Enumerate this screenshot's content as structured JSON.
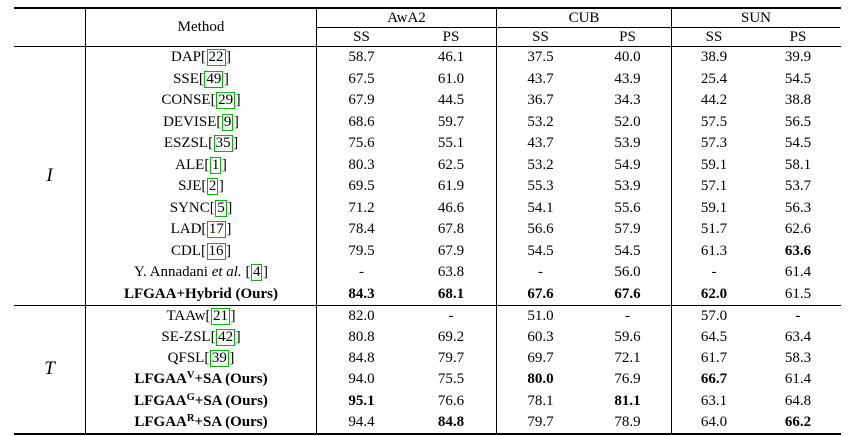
{
  "header": {
    "method_label": "Method",
    "datasets": [
      "AwA2",
      "CUB",
      "SUN"
    ],
    "subcolumns": [
      "SS",
      "PS"
    ]
  },
  "accent": {
    "citation_box_color": "#00b800"
  },
  "groups": [
    {
      "label": "I",
      "rows": [
        {
          "parts": [
            {
              "t": "DAP"
            },
            {
              "cite": "22"
            }
          ],
          "bold": false,
          "cells": [
            {
              "v": "58.7"
            },
            {
              "v": "46.1"
            },
            {
              "v": "37.5"
            },
            {
              "v": "40.0"
            },
            {
              "v": "38.9"
            },
            {
              "v": "39.9"
            }
          ]
        },
        {
          "parts": [
            {
              "t": "SSE"
            },
            {
              "cite": "49"
            }
          ],
          "bold": false,
          "cells": [
            {
              "v": "67.5"
            },
            {
              "v": "61.0"
            },
            {
              "v": "43.7"
            },
            {
              "v": "43.9"
            },
            {
              "v": "25.4"
            },
            {
              "v": "54.5"
            }
          ]
        },
        {
          "parts": [
            {
              "t": "CONSE"
            },
            {
              "cite": "29"
            }
          ],
          "bold": false,
          "cells": [
            {
              "v": "67.9"
            },
            {
              "v": "44.5"
            },
            {
              "v": "36.7"
            },
            {
              "v": "34.3"
            },
            {
              "v": "44.2"
            },
            {
              "v": "38.8"
            }
          ]
        },
        {
          "parts": [
            {
              "t": "DEVISE"
            },
            {
              "cite": "9"
            }
          ],
          "bold": false,
          "cells": [
            {
              "v": "68.6"
            },
            {
              "v": "59.7"
            },
            {
              "v": "53.2"
            },
            {
              "v": "52.0"
            },
            {
              "v": "57.5"
            },
            {
              "v": "56.5"
            }
          ]
        },
        {
          "parts": [
            {
              "t": "ESZSL"
            },
            {
              "cite": "35"
            }
          ],
          "bold": false,
          "cells": [
            {
              "v": "75.6"
            },
            {
              "v": "55.1"
            },
            {
              "v": "43.7"
            },
            {
              "v": "53.9"
            },
            {
              "v": "57.3"
            },
            {
              "v": "54.5"
            }
          ]
        },
        {
          "parts": [
            {
              "t": "ALE"
            },
            {
              "cite": "1"
            }
          ],
          "bold": false,
          "cells": [
            {
              "v": "80.3"
            },
            {
              "v": "62.5"
            },
            {
              "v": "53.2"
            },
            {
              "v": "54.9"
            },
            {
              "v": "59.1"
            },
            {
              "v": "58.1"
            }
          ]
        },
        {
          "parts": [
            {
              "t": "SJE"
            },
            {
              "cite": "2"
            }
          ],
          "bold": false,
          "cells": [
            {
              "v": "69.5"
            },
            {
              "v": "61.9"
            },
            {
              "v": "55.3"
            },
            {
              "v": "53.9"
            },
            {
              "v": "57.1"
            },
            {
              "v": "53.7"
            }
          ]
        },
        {
          "parts": [
            {
              "t": "SYNC"
            },
            {
              "cite": "5"
            }
          ],
          "bold": false,
          "cells": [
            {
              "v": "71.2"
            },
            {
              "v": "46.6"
            },
            {
              "v": "54.1"
            },
            {
              "v": "55.6"
            },
            {
              "v": "59.1"
            },
            {
              "v": "56.3"
            }
          ]
        },
        {
          "parts": [
            {
              "t": "LAD"
            },
            {
              "cite": "17"
            }
          ],
          "bold": false,
          "cells": [
            {
              "v": "78.4"
            },
            {
              "v": "67.8"
            },
            {
              "v": "56.6"
            },
            {
              "v": "57.9"
            },
            {
              "v": "51.7"
            },
            {
              "v": "62.6"
            }
          ]
        },
        {
          "parts": [
            {
              "t": "CDL"
            },
            {
              "cite": "16"
            }
          ],
          "bold": false,
          "cells": [
            {
              "v": "79.5"
            },
            {
              "v": "67.9"
            },
            {
              "v": "54.5"
            },
            {
              "v": "54.5"
            },
            {
              "v": "61.3"
            },
            {
              "v": "63.6",
              "b": true
            }
          ]
        },
        {
          "parts": [
            {
              "t": "Y. Annadani "
            },
            {
              "i": "et al."
            },
            {
              "t": " "
            },
            {
              "cite": "4"
            }
          ],
          "bold": false,
          "cells": [
            {
              "v": "-"
            },
            {
              "v": "63.8"
            },
            {
              "v": "-"
            },
            {
              "v": "56.0"
            },
            {
              "v": "-"
            },
            {
              "v": "61.4"
            }
          ]
        },
        {
          "parts": [
            {
              "t": "LFGAA+Hybrid (Ours)"
            }
          ],
          "bold": true,
          "cells": [
            {
              "v": "84.3",
              "b": true
            },
            {
              "v": "68.1",
              "b": true
            },
            {
              "v": "67.6",
              "b": true
            },
            {
              "v": "67.6",
              "b": true
            },
            {
              "v": "62.0",
              "b": true
            },
            {
              "v": "61.5"
            }
          ]
        }
      ]
    },
    {
      "label": "T",
      "rows": [
        {
          "parts": [
            {
              "t": "TAAw"
            },
            {
              "cite": "21"
            }
          ],
          "bold": false,
          "cells": [
            {
              "v": "82.0"
            },
            {
              "v": "-"
            },
            {
              "v": "51.0"
            },
            {
              "v": "-"
            },
            {
              "v": "57.0"
            },
            {
              "v": "-"
            }
          ]
        },
        {
          "parts": [
            {
              "t": "SE-ZSL"
            },
            {
              "cite": "42"
            }
          ],
          "bold": false,
          "cells": [
            {
              "v": "80.8"
            },
            {
              "v": "69.2"
            },
            {
              "v": "60.3"
            },
            {
              "v": "59.6"
            },
            {
              "v": "64.5"
            },
            {
              "v": "63.4"
            }
          ]
        },
        {
          "parts": [
            {
              "t": "QFSL"
            },
            {
              "cite": "39"
            }
          ],
          "bold": false,
          "cells": [
            {
              "v": "84.8"
            },
            {
              "v": "79.7"
            },
            {
              "v": "69.7"
            },
            {
              "v": "72.1"
            },
            {
              "v": "61.7"
            },
            {
              "v": "58.3"
            }
          ]
        },
        {
          "parts": [
            {
              "t": "LFGAA"
            },
            {
              "sup": "V"
            },
            {
              "t": "+SA (Ours)"
            }
          ],
          "bold": true,
          "cells": [
            {
              "v": "94.0"
            },
            {
              "v": "75.5"
            },
            {
              "v": "80.0",
              "b": true
            },
            {
              "v": "76.9"
            },
            {
              "v": "66.7",
              "b": true
            },
            {
              "v": "61.4"
            }
          ]
        },
        {
          "parts": [
            {
              "t": "LFGAA"
            },
            {
              "sup": "G"
            },
            {
              "t": "+SA (Ours)"
            }
          ],
          "bold": true,
          "cells": [
            {
              "v": "95.1",
              "b": true
            },
            {
              "v": "76.6"
            },
            {
              "v": "78.1"
            },
            {
              "v": "81.1",
              "b": true
            },
            {
              "v": "63.1"
            },
            {
              "v": "64.8"
            }
          ]
        },
        {
          "parts": [
            {
              "t": "LFGAA"
            },
            {
              "sup": "R"
            },
            {
              "t": "+SA (Ours)"
            }
          ],
          "bold": true,
          "cells": [
            {
              "v": "94.4"
            },
            {
              "v": "84.8",
              "b": true
            },
            {
              "v": "79.7"
            },
            {
              "v": "78.9"
            },
            {
              "v": "64.0"
            },
            {
              "v": "66.2",
              "b": true
            }
          ]
        }
      ]
    }
  ]
}
